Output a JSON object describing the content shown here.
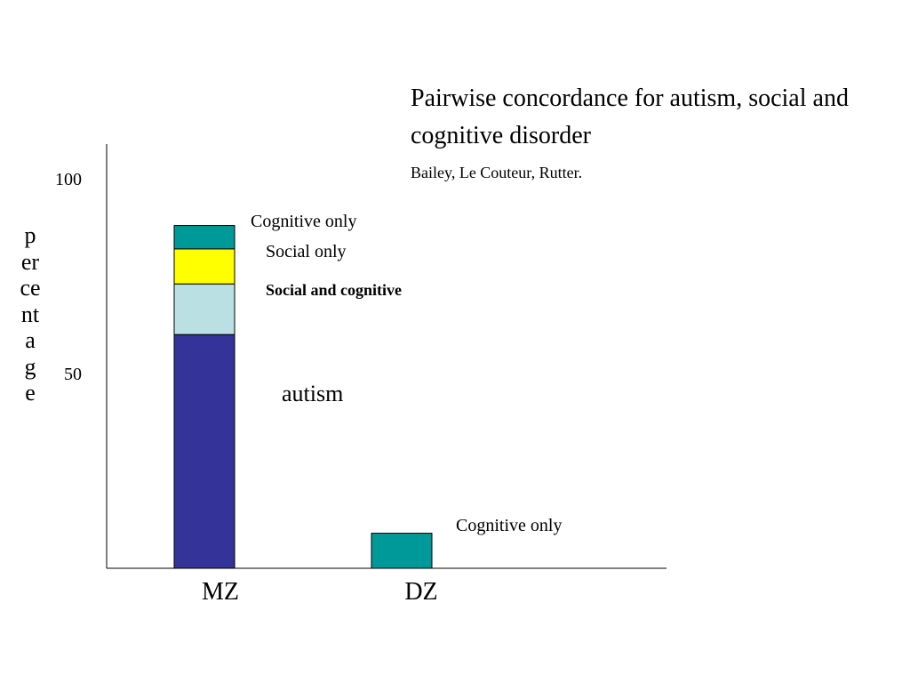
{
  "slide": {
    "title": "Pairwise concordance for autism, social and cognitive disorder",
    "subtitle": "Bailey, Le Couteur, Rutter."
  },
  "chart_data": {
    "type": "bar",
    "stacked": true,
    "categories": [
      "MZ",
      "DZ"
    ],
    "ylabel": "percentage",
    "ylim": [
      0,
      100
    ],
    "yticks": [
      50,
      100
    ],
    "grid": false,
    "series": [
      {
        "name": "autism",
        "color": "#333399",
        "values": [
          60,
          0
        ]
      },
      {
        "name": "Social and cognitive",
        "color": "#bbe0e3",
        "values": [
          13,
          0
        ]
      },
      {
        "name": "Social only",
        "color": "#ffff00",
        "values": [
          9,
          0
        ]
      },
      {
        "name": "Cognitive only",
        "color": "#009999",
        "values": [
          6,
          9
        ]
      }
    ],
    "annotations": [
      {
        "text": "Cognitive only",
        "bold": false,
        "size": 20
      },
      {
        "text": "Social only",
        "bold": false,
        "size": 20
      },
      {
        "text": "Social and cognitive",
        "bold": true,
        "size": 18
      },
      {
        "text": "autism",
        "bold": false,
        "size": 26
      },
      {
        "text": "Cognitive only",
        "bold": false,
        "size": 20
      }
    ]
  }
}
